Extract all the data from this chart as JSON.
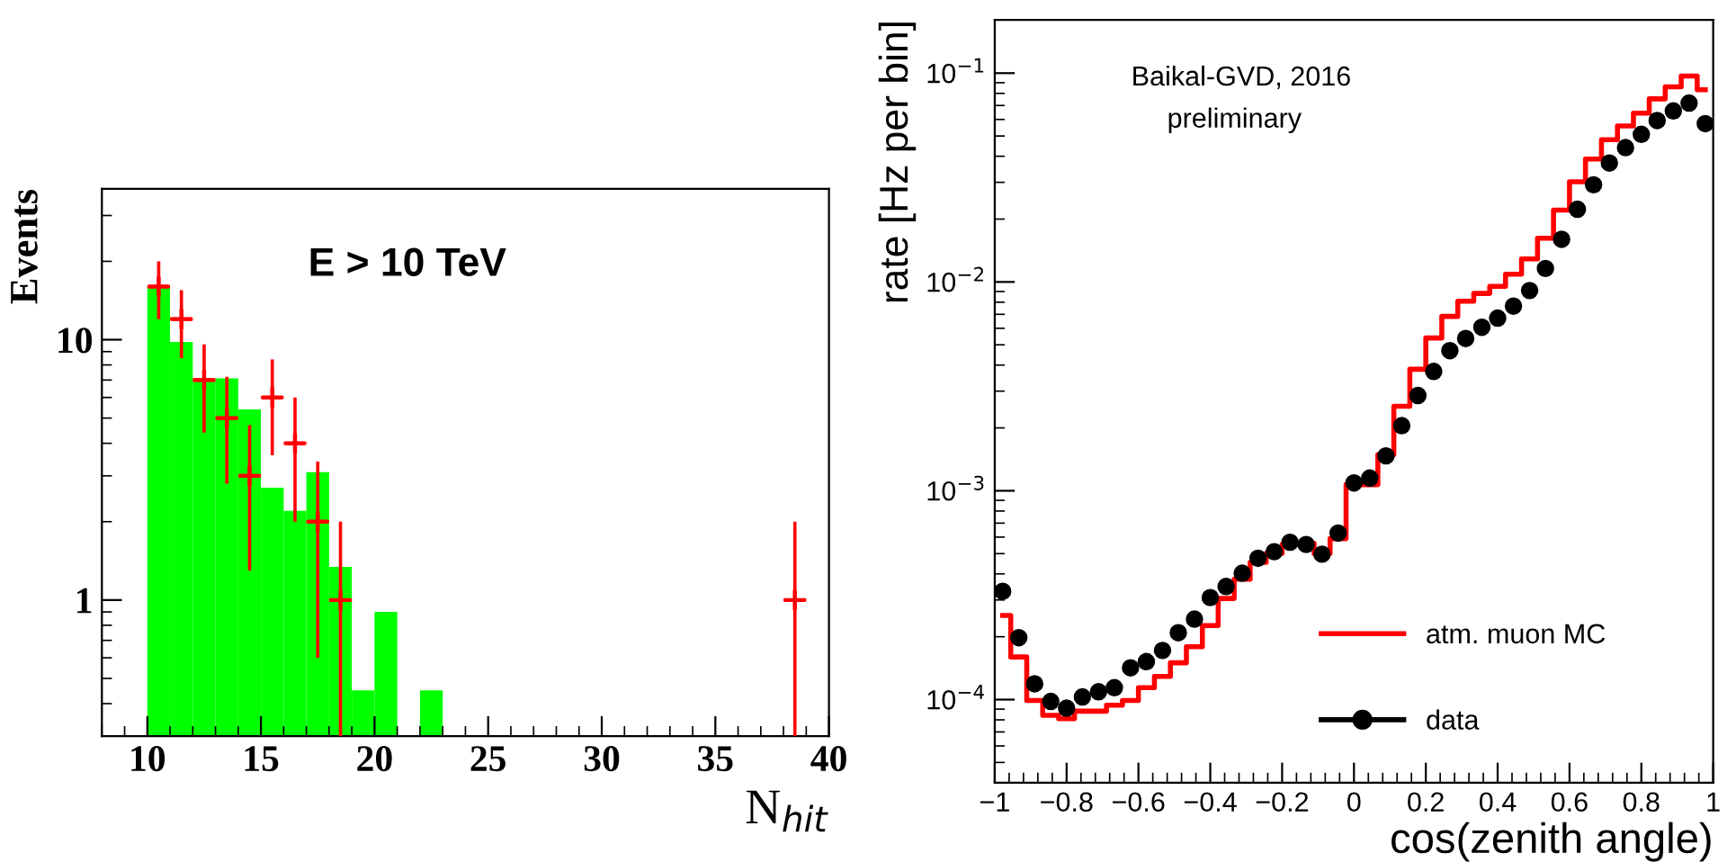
{
  "chart_data": [
    {
      "type": "histogram",
      "ylabel": "Events",
      "xlabel": "N$_{hit}$",
      "annotations": [
        "E > 10 TeV"
      ],
      "log": true,
      "grid": false,
      "xlim": [
        8,
        40
      ],
      "xticks": [
        10,
        15,
        20,
        25,
        30,
        35,
        40
      ],
      "ylim": [
        0.3,
        38
      ],
      "yticks": [
        1,
        10
      ],
      "series": [
        {
          "color": "#00ff00",
          "bins": [
            10,
            11,
            12,
            13,
            14,
            15,
            16,
            17,
            18,
            19,
            20,
            21,
            22,
            23
          ],
          "values": [
            16,
            9.8,
            7.1,
            7.1,
            5.4,
            2.7,
            2.2,
            3.1,
            1.34,
            0.45,
            0.9,
            null,
            0.45
          ]
        },
        {
          "type": "scatter",
          "color": "#ff0000",
          "marker": "cross",
          "x": [
            10.5,
            11.5,
            12.5,
            13.5,
            14.5,
            15.5,
            16.5,
            17.5,
            18.5,
            38.5
          ],
          "values": [
            16,
            12,
            7,
            5,
            3,
            6,
            4,
            2,
            1,
            1
          ],
          "errors": [
            4,
            3.5,
            2.6,
            2.2,
            1.7,
            2.4,
            2,
            1.4,
            [
              0.3,
              2
            ],
            [
              0.3,
              2
            ]
          ],
          "xerrors": [
            0.5,
            0.5,
            0.5,
            0.5,
            0.5,
            0.5,
            0.5,
            0.5,
            0.5,
            0.5
          ]
        }
      ]
    },
    {
      "type": "scatter",
      "ylabel": "rate [Hz per bin]",
      "xlabel": "cos(zenith angle)",
      "annotations": [
        "Baikal-GVD, 2016",
        "preliminary"
      ],
      "log": true,
      "grid": false,
      "legend": "bottom right",
      "xlim": [
        -1,
        1
      ],
      "xticks": [
        {
          "value": -1,
          "label": "−1"
        },
        {
          "value": -0.8,
          "label": "−0.8"
        },
        {
          "value": -0.6,
          "label": "−0.6"
        },
        {
          "value": -0.4,
          "label": "−0.4"
        },
        {
          "value": -0.2,
          "label": "−0.2"
        },
        0,
        0.2,
        0.4,
        0.6,
        0.8,
        1
      ],
      "ylim": [
        4e-05,
        0.18
      ],
      "yticks": [
        {
          "value": 0.0001,
          "label": "10$^{−4}$"
        },
        {
          "value": 0.001,
          "label": "10$^{−3}$"
        },
        {
          "value": 0.01,
          "label": "10$^{−2}$"
        },
        {
          "value": 0.1,
          "label": "10$^{−1}$"
        }
      ],
      "series": [
        {
          "type": "step",
          "name": "atm. muon MC",
          "color": "#ff0000",
          "x": [
            -0.978,
            -0.933,
            -0.889,
            -0.844,
            -0.8,
            -0.756,
            -0.711,
            -0.667,
            -0.622,
            -0.578,
            -0.533,
            -0.489,
            -0.444,
            -0.4,
            -0.356,
            -0.311,
            -0.267,
            -0.222,
            -0.178,
            -0.133,
            -0.089,
            -0.044,
            0.0,
            0.044,
            0.089,
            0.133,
            0.178,
            0.222,
            0.267,
            0.311,
            0.356,
            0.4,
            0.444,
            0.489,
            0.533,
            0.578,
            0.622,
            0.667,
            0.711,
            0.756,
            0.8,
            0.844,
            0.889,
            0.933,
            0.978
          ],
          "values": [
            0.000253,
            0.00016,
            9.9e-05,
            8.4e-05,
            8.1e-05,
            8.8e-05,
            8.8e-05,
            9.4e-05,
            9.9e-05,
            0.000114,
            0.000129,
            0.00015,
            0.000179,
            0.000226,
            0.000305,
            0.000377,
            0.000454,
            0.000501,
            0.000553,
            0.00056,
            0.0005,
            0.00059,
            0.00107,
            0.00107,
            0.00149,
            0.00254,
            0.00382,
            0.00539,
            0.00684,
            0.00809,
            0.00881,
            0.00953,
            0.0109,
            0.0129,
            0.0162,
            0.0221,
            0.0302,
            0.0388,
            0.048,
            0.0558,
            0.0643,
            0.0753,
            0.086,
            0.0968,
            0.0832
          ]
        },
        {
          "name": "data",
          "color": "#000000",
          "marker": "circle",
          "x": [
            -0.978,
            -0.933,
            -0.889,
            -0.844,
            -0.8,
            -0.756,
            -0.711,
            -0.667,
            -0.622,
            -0.578,
            -0.533,
            -0.489,
            -0.444,
            -0.4,
            -0.356,
            -0.311,
            -0.267,
            -0.222,
            -0.178,
            -0.133,
            -0.089,
            -0.044,
            0.0,
            0.044,
            0.089,
            0.133,
            0.178,
            0.222,
            0.267,
            0.311,
            0.356,
            0.4,
            0.444,
            0.489,
            0.533,
            0.578,
            0.622,
            0.667,
            0.711,
            0.756,
            0.8,
            0.844,
            0.889,
            0.933,
            0.978
          ],
          "values": [
            0.00033,
            0.000198,
            0.000119,
            9.8e-05,
            9.1e-05,
            0.000103,
            0.000109,
            0.000114,
            0.000142,
            0.000152,
            0.000172,
            0.000209,
            0.000243,
            0.000308,
            0.000348,
            0.000403,
            0.000475,
            0.000511,
            0.000567,
            0.000553,
            0.000497,
            0.000627,
            0.00109,
            0.00115,
            0.00147,
            0.00205,
            0.00286,
            0.00373,
            0.00469,
            0.00536,
            0.00607,
            0.00671,
            0.00766,
            0.0091,
            0.0116,
            0.016,
            0.0223,
            0.0292,
            0.0371,
            0.044,
            0.0509,
            0.0593,
            0.0659,
            0.0719,
            0.0573
          ]
        }
      ]
    }
  ]
}
